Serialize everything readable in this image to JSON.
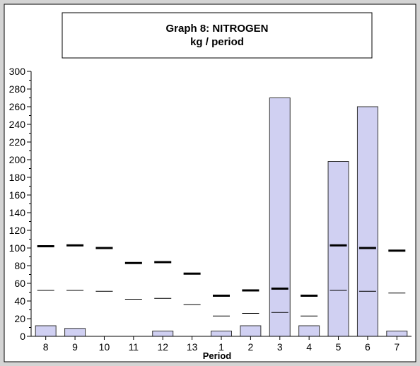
{
  "chart_data": {
    "type": "bar",
    "title": "Graph 8: NITROGEN",
    "subtitle": "kg / period",
    "xlabel": "Period",
    "ylabel": "",
    "ylim": [
      0,
      300
    ],
    "yticks": [
      0,
      20,
      40,
      60,
      80,
      100,
      120,
      140,
      160,
      180,
      200,
      220,
      240,
      260,
      280,
      300
    ],
    "categories": [
      "8",
      "9",
      "10",
      "11",
      "12",
      "13",
      "1",
      "2",
      "3",
      "4",
      "5",
      "6",
      "7"
    ],
    "values": [
      12,
      9,
      0,
      0,
      6,
      0,
      6,
      12,
      270,
      12,
      198,
      260,
      6
    ],
    "upper_marker_values": [
      102,
      103,
      100,
      83,
      84,
      71,
      46,
      52,
      54,
      46,
      103,
      100,
      97
    ],
    "lower_marker_values": [
      52,
      52,
      51,
      42,
      43,
      36,
      23,
      26,
      27,
      23,
      52,
      51,
      49
    ],
    "grid": false,
    "colors": {
      "frame_background": "#d4d4d4",
      "plot_background": "#ffffff",
      "bar_fill": "#d0d0f2",
      "bar_stroke": "#333333",
      "marker": "#000000"
    }
  }
}
